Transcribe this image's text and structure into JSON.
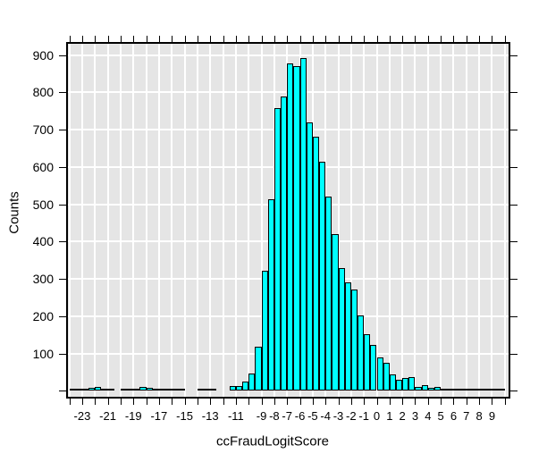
{
  "chart_data": {
    "type": "histogram",
    "title": "",
    "xlabel": "ccFraudLogitScore",
    "ylabel": "Counts",
    "bin_width": 0.5,
    "bin_start": -24.0,
    "counts": [
      3,
      3,
      3,
      9,
      10,
      4,
      3,
      0,
      4,
      4,
      4,
      10,
      9,
      4,
      6,
      6,
      4,
      4,
      0,
      0,
      2,
      2,
      2,
      0,
      0,
      13,
      13,
      25,
      47,
      118,
      322,
      513,
      758,
      788,
      878,
      870,
      891,
      720,
      680,
      614,
      520,
      419,
      328,
      290,
      272,
      201,
      151,
      122,
      89,
      75,
      43,
      30,
      34,
      37,
      11,
      16,
      7,
      10,
      4,
      6,
      2,
      1,
      1,
      3,
      1,
      1,
      1,
      1
    ],
    "x_axis": {
      "tick_min": -24,
      "tick_max": 10,
      "tick_step": 1,
      "labeled_ticks": [
        "-23",
        "-21",
        "-19",
        "-17",
        "-15",
        "-13",
        "-11",
        "-9",
        "-8",
        "-7",
        "-6",
        "-5",
        "-4",
        "-3",
        "-2",
        "-1",
        "0",
        "1",
        "2",
        "3",
        "4",
        "5",
        "6",
        "7",
        "8",
        "9"
      ],
      "grid": true
    },
    "y_axis": {
      "tick_min": 0,
      "tick_max": 900,
      "tick_step": 100,
      "labeled_ticks": [
        "100",
        "200",
        "300",
        "400",
        "500",
        "600",
        "700",
        "800",
        "900"
      ],
      "range": [
        0,
        935
      ],
      "grid": true
    },
    "legend": "none",
    "colors": {
      "bar_fill": "#00FFFF",
      "bar_stroke": "#000000",
      "plot_bg": "#E5E5E5",
      "grid": "#FFFFFF",
      "frame": "#000000",
      "text": "#000000",
      "page_bg": "#FFFFFF"
    }
  }
}
